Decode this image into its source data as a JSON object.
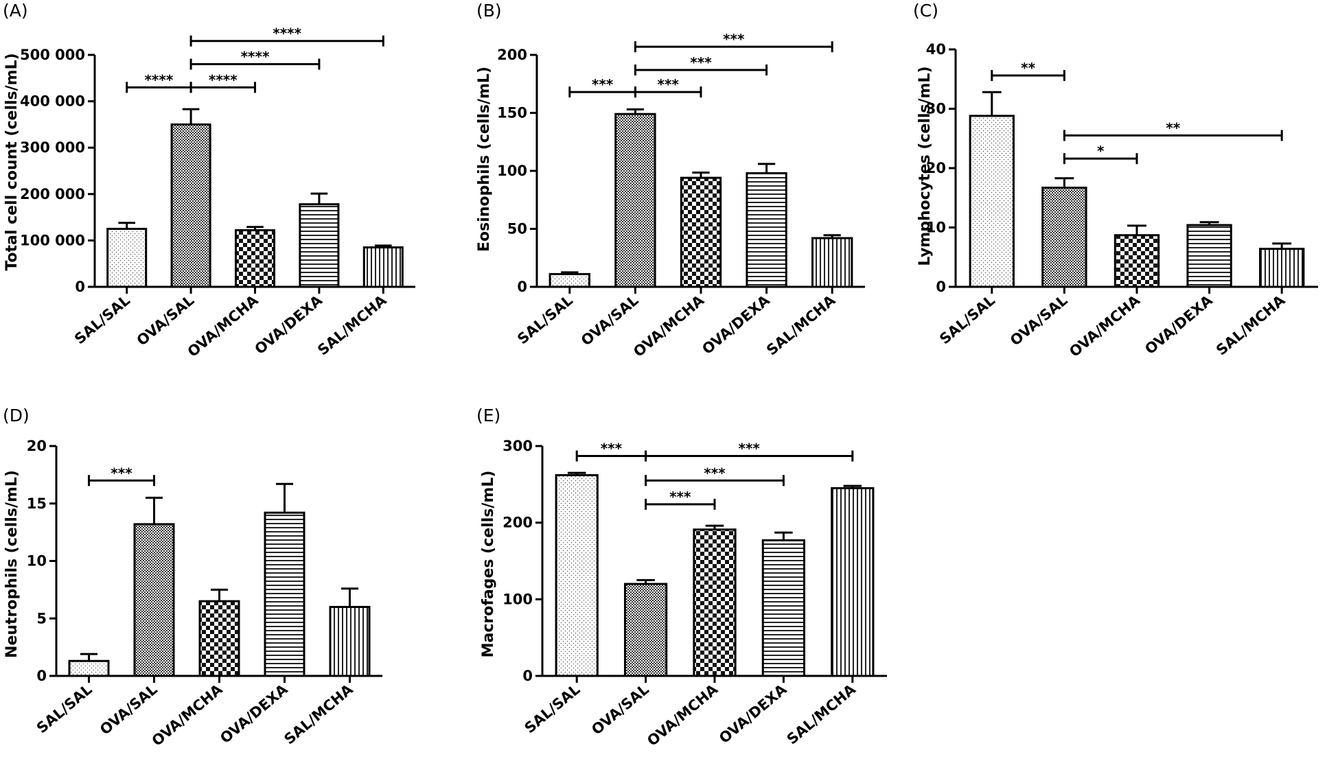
{
  "chart_data": [
    {
      "panel": "(A)",
      "type": "bar",
      "ylabel": "Total cell count (cells/mL)",
      "ylim": [
        0,
        500000
      ],
      "yticks": [
        0,
        100000,
        200000,
        300000,
        400000,
        500000
      ],
      "ytick_labels": [
        "0",
        "100 000",
        "200 000",
        "300 000",
        "400 000",
        "500 000"
      ],
      "categories": [
        "SAL/SAL",
        "OVA/SAL",
        "OVA/MCHA",
        "OVA/DEXA",
        "SAL/MCHA"
      ],
      "values": [
        125000,
        350000,
        122000,
        178000,
        85000
      ],
      "errors": [
        13000,
        33000,
        7000,
        23000,
        4000
      ],
      "significance": [
        {
          "from": 0,
          "to": 1,
          "y": 430000,
          "label": "****"
        },
        {
          "from": 1,
          "to": 2,
          "y": 430000,
          "label": "****"
        },
        {
          "from": 1,
          "to": 3,
          "y": 480000,
          "label": "****"
        },
        {
          "from": 1,
          "to": 4,
          "y": 530000,
          "label": "****"
        }
      ]
    },
    {
      "panel": "(B)",
      "type": "bar",
      "ylabel": "Eosinophils (cells/mL)",
      "ylim": [
        0,
        200
      ],
      "yticks": [
        0,
        50,
        100,
        150,
        200
      ],
      "ytick_labels": [
        "0",
        "50",
        "100",
        "150",
        "200"
      ],
      "categories": [
        "SAL/SAL",
        "OVA/SAL",
        "OVA/MCHA",
        "OVA/DEXA",
        "SAL/MCHA"
      ],
      "values": [
        11,
        149,
        94,
        98,
        42
      ],
      "errors": [
        1.5,
        4,
        4.5,
        8,
        2.5
      ],
      "significance": [
        {
          "from": 0,
          "to": 1,
          "y": 168,
          "label": "***"
        },
        {
          "from": 1,
          "to": 2,
          "y": 168,
          "label": "***"
        },
        {
          "from": 1,
          "to": 3,
          "y": 187,
          "label": "***"
        },
        {
          "from": 1,
          "to": 4,
          "y": 207,
          "label": "***"
        }
      ]
    },
    {
      "panel": "(C)",
      "type": "bar",
      "ylabel": "Lymphocytes (cells/mL)",
      "ylim": [
        0,
        40
      ],
      "yticks": [
        0,
        10,
        20,
        30,
        40
      ],
      "ytick_labels": [
        "0",
        "10",
        "20",
        "30",
        "40"
      ],
      "categories": [
        "SAL/SAL",
        "OVA/SAL",
        "OVA/MCHA",
        "OVA/DEXA",
        "SAL/MCHA"
      ],
      "values": [
        28.8,
        16.7,
        8.7,
        10.4,
        6.4
      ],
      "errors": [
        4,
        1.6,
        1.6,
        0.5,
        0.9
      ],
      "significance": [
        {
          "from": 0,
          "to": 1,
          "y": 35.6,
          "label": "**"
        },
        {
          "from": 1,
          "to": 2,
          "y": 21.6,
          "label": "*"
        },
        {
          "from": 1,
          "to": 4,
          "y": 25.5,
          "label": "**"
        }
      ]
    },
    {
      "panel": "(D)",
      "type": "bar",
      "ylabel": "Neutrophils (cells/mL)",
      "ylim": [
        0,
        20
      ],
      "yticks": [
        0,
        5,
        10,
        15,
        20
      ],
      "ytick_labels": [
        "0",
        "5",
        "10",
        "15",
        "20"
      ],
      "categories": [
        "SAL/SAL",
        "OVA/SAL",
        "OVA/MCHA",
        "OVA/DEXA",
        "SAL/MCHA"
      ],
      "values": [
        1.3,
        13.2,
        6.5,
        14.2,
        6.0
      ],
      "errors": [
        0.6,
        2.3,
        1.0,
        2.5,
        1.6
      ],
      "significance": [
        {
          "from": 0,
          "to": 1,
          "y": 17.0,
          "label": "***"
        }
      ]
    },
    {
      "panel": "(E)",
      "type": "bar",
      "ylabel": "Macrofages (cells/mL)",
      "ylim": [
        0,
        300
      ],
      "yticks": [
        0,
        100,
        200,
        300
      ],
      "ytick_labels": [
        "0",
        "100",
        "200",
        "300"
      ],
      "categories": [
        "SAL/SAL",
        "OVA/SAL",
        "OVA/MCHA",
        "OVA/DEXA",
        "SAL/MCHA"
      ],
      "values": [
        262,
        120,
        191,
        177,
        245
      ],
      "errors": [
        3,
        5,
        5,
        10,
        3
      ],
      "significance": [
        {
          "from": 0,
          "to": 1,
          "y": 287,
          "label": "***"
        },
        {
          "from": 1,
          "to": 2,
          "y": 224,
          "label": "***"
        },
        {
          "from": 1,
          "to": 3,
          "y": 255,
          "label": "***"
        },
        {
          "from": 1,
          "to": 4,
          "y": 287,
          "label": "***"
        }
      ]
    }
  ]
}
